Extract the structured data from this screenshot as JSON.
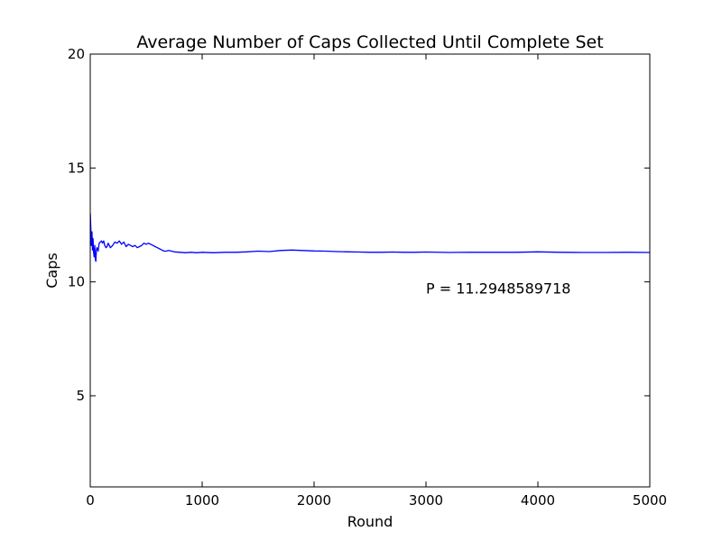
{
  "chart_data": {
    "type": "line",
    "title": "Average Number of Caps Collected Until Complete Set",
    "xlabel": "Round",
    "ylabel": "Caps",
    "xlim": [
      0,
      5000
    ],
    "ylim": [
      1,
      20
    ],
    "xticks": [
      0,
      1000,
      2000,
      3000,
      4000,
      5000
    ],
    "yticks": [
      5,
      10,
      15,
      20
    ],
    "grid": false,
    "annotation": {
      "text": "P = 11.2948589718",
      "x": 3000,
      "y": 9.5
    },
    "series": [
      {
        "color": "#0000ff",
        "x": [
          1,
          5,
          10,
          15,
          20,
          25,
          30,
          35,
          40,
          45,
          50,
          55,
          60,
          70,
          80,
          90,
          100,
          110,
          120,
          130,
          140,
          150,
          160,
          170,
          180,
          190,
          200,
          220,
          240,
          260,
          280,
          300,
          320,
          340,
          360,
          380,
          400,
          420,
          440,
          460,
          480,
          500,
          520,
          540,
          560,
          580,
          600,
          620,
          640,
          660,
          680,
          700,
          750,
          800,
          850,
          900,
          950,
          1000,
          1100,
          1200,
          1300,
          1400,
          1500,
          1600,
          1700,
          1800,
          1900,
          2000,
          2100,
          2200,
          2300,
          2400,
          2500,
          2600,
          2700,
          2800,
          2900,
          3000,
          3200,
          3400,
          3600,
          3800,
          4000,
          4200,
          4400,
          4600,
          4800,
          5000
        ],
        "y": [
          13.0,
          12.4,
          11.6,
          12.2,
          11.4,
          11.9,
          11.3,
          11.1,
          11.6,
          11.0,
          10.9,
          11.4,
          11.5,
          11.35,
          11.7,
          11.75,
          11.8,
          11.7,
          11.8,
          11.6,
          11.5,
          11.55,
          11.7,
          11.6,
          11.5,
          11.55,
          11.6,
          11.75,
          11.7,
          11.8,
          11.65,
          11.75,
          11.55,
          11.65,
          11.6,
          11.55,
          11.6,
          11.5,
          11.55,
          11.6,
          11.7,
          11.65,
          11.7,
          11.65,
          11.6,
          11.55,
          11.5,
          11.45,
          11.4,
          11.35,
          11.35,
          11.38,
          11.32,
          11.3,
          11.28,
          11.3,
          11.28,
          11.3,
          11.28,
          11.3,
          11.3,
          11.32,
          11.35,
          11.33,
          11.38,
          11.4,
          11.38,
          11.36,
          11.35,
          11.33,
          11.32,
          11.31,
          11.3,
          11.3,
          11.31,
          11.3,
          11.3,
          11.31,
          11.29,
          11.3,
          11.3,
          11.3,
          11.32,
          11.3,
          11.29,
          11.29,
          11.3,
          11.29
        ]
      }
    ]
  }
}
